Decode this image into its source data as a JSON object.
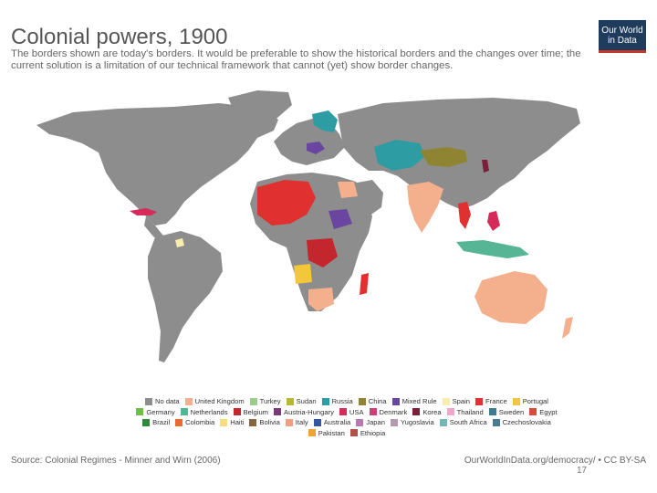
{
  "header": {
    "title": "Colonial powers, 1900",
    "subtitle": "The borders shown are today's borders. It would be preferable to show the historical borders and the changes over time; the current solution is a limitation of our technical framework that cannot (yet) show border changes.",
    "logo_text": "Our World in Data"
  },
  "colors": {
    "ocean": "#ffffff",
    "no_data": "#8d8d8d"
  },
  "legend": {
    "rows": [
      [
        {
          "label": "No data",
          "color": "#8d8d8d"
        },
        {
          "label": "United Kingdom",
          "color": "#f4b08d"
        },
        {
          "label": "Turkey",
          "color": "#9ccd8e"
        },
        {
          "label": "Sudan",
          "color": "#b6b92f"
        },
        {
          "label": "Russia",
          "color": "#2d9da3"
        },
        {
          "label": "China",
          "color": "#8f8431"
        },
        {
          "label": "Mixed Rule",
          "color": "#6a46a1"
        },
        {
          "label": "Spain",
          "color": "#f9ecad"
        },
        {
          "label": "France",
          "color": "#e03030"
        },
        {
          "label": "Portugal",
          "color": "#f4c73a"
        }
      ],
      [
        {
          "label": "Germany",
          "color": "#6fbd4c"
        },
        {
          "label": "Netherlands",
          "color": "#55b595"
        },
        {
          "label": "Belgium",
          "color": "#c4262d"
        },
        {
          "label": "Austria-Hungary",
          "color": "#7a3a78"
        },
        {
          "label": "USA",
          "color": "#d62a59"
        },
        {
          "label": "Denmark",
          "color": "#cf3f78"
        },
        {
          "label": "Korea",
          "color": "#7b1f3b"
        },
        {
          "label": "Thailand",
          "color": "#f0a6c6"
        },
        {
          "label": "Sweden",
          "color": "#3d7d8e"
        },
        {
          "label": "Egypt",
          "color": "#d64d3f"
        }
      ],
      [
        {
          "label": "Brazil",
          "color": "#2e8a3b"
        },
        {
          "label": "Colombia",
          "color": "#ec6a32"
        },
        {
          "label": "Haiti",
          "color": "#f5de7b"
        },
        {
          "label": "Bolivia",
          "color": "#86673d"
        },
        {
          "label": "Italy",
          "color": "#f39e7e"
        },
        {
          "label": "Australia",
          "color": "#3357a0"
        },
        {
          "label": "Japan",
          "color": "#b87ab0"
        },
        {
          "label": "Yugoslavia",
          "color": "#b39aaf"
        },
        {
          "label": "South Africa",
          "color": "#76b7b3"
        },
        {
          "label": "Czechoslovakia",
          "color": "#4b7a94"
        }
      ],
      [
        {
          "label": "Pakistan",
          "color": "#f2a23a"
        },
        {
          "label": "Ethiopia",
          "color": "#b0534a"
        }
      ]
    ]
  },
  "footer": {
    "source": "Source: Colonial Regimes - Minner and Wirn (2006)",
    "url": "OurWorldInData.org/democracy/ • CC BY-SA",
    "page_number": "17"
  }
}
